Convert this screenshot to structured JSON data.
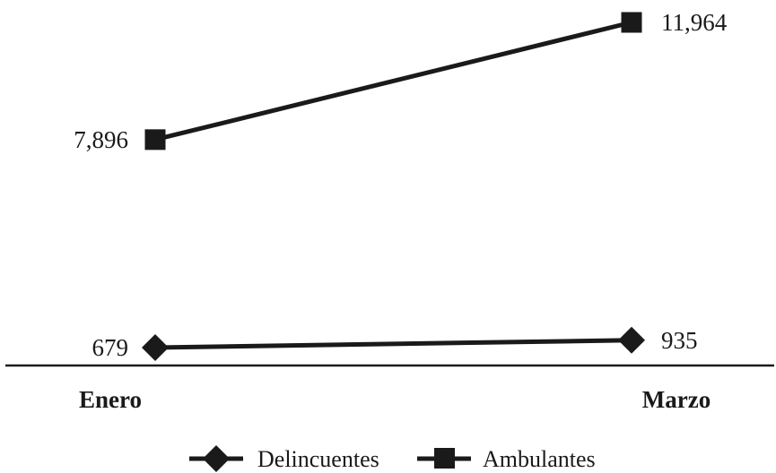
{
  "chart_data": {
    "type": "line",
    "categories": [
      "Enero",
      "Marzo"
    ],
    "series": [
      {
        "name": "Delincuentes",
        "values": [
          679,
          935
        ],
        "labels": [
          "679",
          "935"
        ],
        "marker": "diamond"
      },
      {
        "name": "Ambulantes",
        "values": [
          7896,
          11964
        ],
        "labels": [
          "7,896",
          "11,964"
        ],
        "marker": "square"
      }
    ],
    "ylim": [
      0,
      12500
    ],
    "grid": false,
    "legend_position": "bottom-center",
    "colors": {
      "line": "#1a1a1a",
      "axis": "#1a1a1a"
    }
  }
}
